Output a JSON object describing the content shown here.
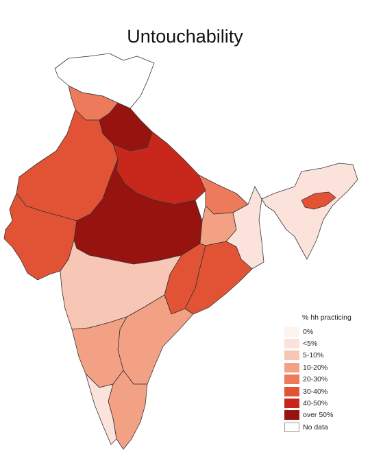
{
  "title": "Untouchability",
  "legend": {
    "title": "% hh practicing",
    "entries": [
      {
        "label": "0%",
        "color": "#fdf3ef"
      },
      {
        "label": "<5%",
        "color": "#fbe2da"
      },
      {
        "label": "5-10%",
        "color": "#f8c6b4"
      },
      {
        "label": "10-20%",
        "color": "#f3a184"
      },
      {
        "label": "20-30%",
        "color": "#ee7a5c"
      },
      {
        "label": "30-40%",
        "color": "#e25335"
      },
      {
        "label": "40-50%",
        "color": "#c7281b"
      },
      {
        "label": "over 50%",
        "color": "#96130f"
      },
      {
        "label": "No data",
        "color": "#ffffff"
      }
    ]
  },
  "regions": [
    {
      "name": "jammu-kashmir",
      "category": "No data"
    },
    {
      "name": "himachal-punjab",
      "category": "20-30%"
    },
    {
      "name": "haryana-uttarakhand",
      "category": "over 50%"
    },
    {
      "name": "rajasthan",
      "category": "30-40%"
    },
    {
      "name": "gujarat",
      "category": "30-40%"
    },
    {
      "name": "uttar-pradesh",
      "category": "40-50%"
    },
    {
      "name": "madhya-pradesh",
      "category": "over 50%"
    },
    {
      "name": "bihar",
      "category": "20-30%"
    },
    {
      "name": "jharkhand",
      "category": "10-20%"
    },
    {
      "name": "west-bengal",
      "category": "<5%"
    },
    {
      "name": "odisha",
      "category": "30-40%"
    },
    {
      "name": "chhattisgarh",
      "category": "30-40%"
    },
    {
      "name": "maharashtra",
      "category": "5-10%"
    },
    {
      "name": "telangana-andhra",
      "category": "10-20%"
    },
    {
      "name": "karnataka",
      "category": "10-20%"
    },
    {
      "name": "tamil-nadu",
      "category": "10-20%"
    },
    {
      "name": "kerala",
      "category": "<5%"
    },
    {
      "name": "northeast",
      "category": "<5%"
    },
    {
      "name": "assam-hotspot",
      "category": "30-40%"
    }
  ]
}
